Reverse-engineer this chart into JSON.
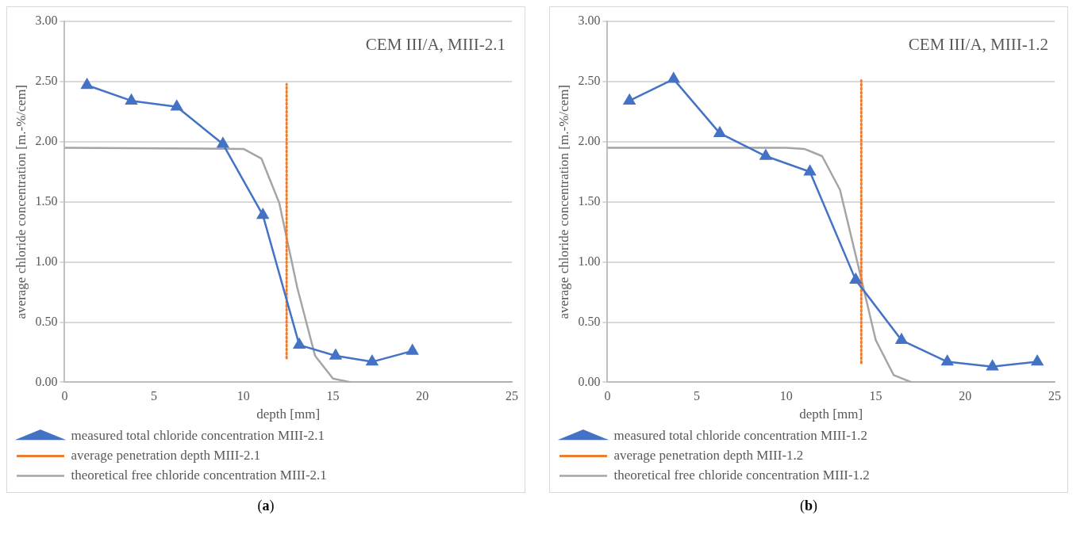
{
  "chart_data": [
    {
      "type": "line",
      "xlabel": "depth [mm]",
      "ylabel": "average chloride concentration [m.-%/cem]",
      "annotations": [
        "CEM III/A, MIII-2.1",
        "(a)"
      ],
      "xlim": [
        0,
        25
      ],
      "xticks": [
        0,
        5,
        10,
        15,
        20,
        25
      ],
      "ylim": [
        0,
        3
      ],
      "yticks": [
        {
          "value": 0,
          "label": "0.00"
        },
        {
          "value": 0.5,
          "label": "0.50"
        },
        {
          "value": 1,
          "label": "1.00"
        },
        {
          "value": 1.5,
          "label": "1.50"
        },
        {
          "value": 2,
          "label": "2.00"
        },
        {
          "value": 2.5,
          "label": "2.50"
        },
        {
          "value": 3,
          "label": "3.00"
        }
      ],
      "grid": "y",
      "legend": "bottom",
      "series": [
        {
          "name": "measured total chloride concentration MIII-2.1",
          "color": "#4472c4",
          "marker": "triangle",
          "line_style": "solid",
          "x": [
            1.25,
            3.73,
            6.27,
            8.85,
            11.08,
            13.12,
            15.15,
            17.19,
            19.44
          ],
          "values": [
            2.47,
            2.34,
            2.29,
            1.98,
            1.39,
            0.31,
            0.22,
            0.17,
            0.26
          ]
        },
        {
          "name": "average penetration depth MIII-2.1",
          "color": "#ed7d31",
          "marker": "none",
          "line_style": "dotted",
          "x": [
            12.41,
            12.41
          ],
          "values": [
            0.2,
            2.48
          ]
        },
        {
          "name": "theoretical free chloride concentration MIII-2.1",
          "color": "#a5a5a5",
          "marker": "none",
          "line_style": "solid",
          "x": [
            0,
            10,
            11,
            12,
            13,
            14,
            15,
            16,
            25
          ],
          "values": [
            1.95,
            1.94,
            1.86,
            1.49,
            0.79,
            0.22,
            0.03,
            0,
            0
          ]
        }
      ]
    },
    {
      "type": "line",
      "xlabel": "depth [mm]",
      "ylabel": "average chloride concentration [m.-%/cem]",
      "annotations": [
        "CEM III/A, MIII-1.2",
        "(b)"
      ],
      "xlim": [
        0,
        25
      ],
      "xticks": [
        0,
        5,
        10,
        15,
        20,
        25
      ],
      "ylim": [
        0,
        3
      ],
      "yticks": [
        {
          "value": 0,
          "label": "0.00"
        },
        {
          "value": 0.5,
          "label": "0.50"
        },
        {
          "value": 1,
          "label": "1.00"
        },
        {
          "value": 1.5,
          "label": "1.50"
        },
        {
          "value": 2,
          "label": "2.00"
        },
        {
          "value": 2.5,
          "label": "2.50"
        },
        {
          "value": 3,
          "label": "3.00"
        }
      ],
      "grid": "y",
      "legend": "bottom",
      "series": [
        {
          "name": "measured total chloride concentration MIII-1.2",
          "color": "#4472c4",
          "marker": "triangle",
          "line_style": "solid",
          "x": [
            1.23,
            3.7,
            6.28,
            8.85,
            11.32,
            13.88,
            16.44,
            19.0,
            21.52,
            24.03
          ],
          "values": [
            2.34,
            2.52,
            2.07,
            1.88,
            1.75,
            0.85,
            0.35,
            0.17,
            0.13,
            0.17
          ]
        },
        {
          "name": "average penetration depth MIII-1.2",
          "color": "#ed7d31",
          "marker": "none",
          "line_style": "dotted",
          "x": [
            14.19,
            14.19
          ],
          "values": [
            0.16,
            2.51
          ]
        },
        {
          "name": "theoretical free chloride concentration MIII-1.2",
          "color": "#a5a5a5",
          "marker": "none",
          "line_style": "solid",
          "x": [
            0,
            10,
            11,
            12,
            13,
            14,
            15,
            16,
            17,
            25
          ],
          "values": [
            1.95,
            1.95,
            1.94,
            1.88,
            1.6,
            0.98,
            0.35,
            0.06,
            0,
            0
          ]
        }
      ]
    }
  ]
}
